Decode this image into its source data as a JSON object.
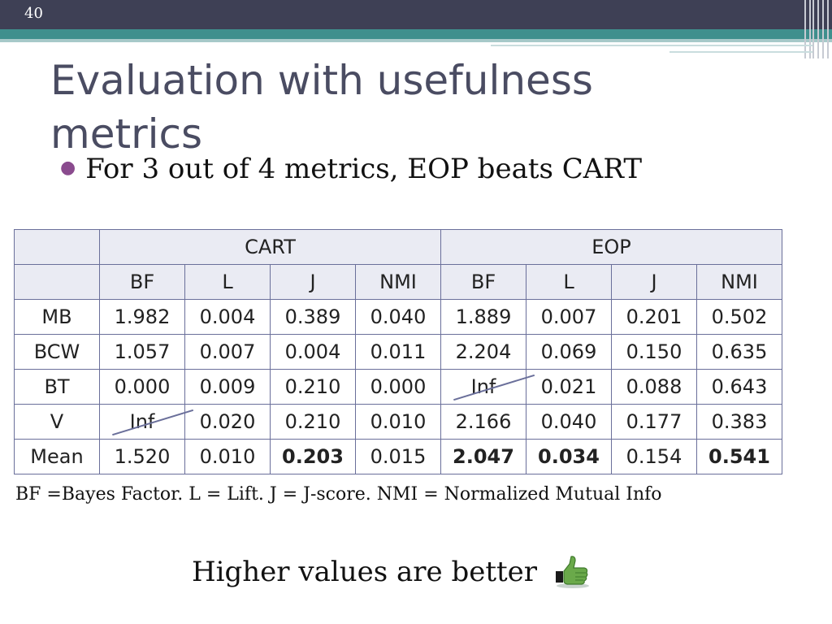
{
  "slide": {
    "number": "40"
  },
  "title": "Evaluation with usefulness metrics",
  "bullet": "For 3 out of 4 metrics, EOP beats CART",
  "table": {
    "groups": [
      "CART",
      "EOP"
    ],
    "metrics": [
      "BF",
      "L",
      "J",
      "NMI",
      "BF",
      "L",
      "J",
      "NMI"
    ],
    "rows": [
      {
        "label": "MB",
        "cells": [
          "1.982",
          "0.004",
          "0.389",
          "0.040",
          "1.889",
          "0.007",
          "0.201",
          "0.502"
        ]
      },
      {
        "label": "BCW",
        "cells": [
          "1.057",
          "0.007",
          "0.004",
          "0.011",
          "2.204",
          "0.069",
          "0.150",
          "0.635"
        ]
      },
      {
        "label": "BT",
        "cells": [
          "0.000",
          "0.009",
          "0.210",
          "0.000",
          "Inf",
          "0.021",
          "0.088",
          "0.643"
        ]
      },
      {
        "label": "V",
        "cells": [
          "Inf",
          "0.020",
          "0.210",
          "0.010",
          "2.166",
          "0.040",
          "0.177",
          "0.383"
        ]
      },
      {
        "label": "Mean",
        "cells": [
          "1.520",
          "0.010",
          "0.203",
          "0.015",
          "2.047",
          "0.034",
          "0.154",
          "0.541"
        ]
      }
    ]
  },
  "legend": "BF =Bayes Factor. L = Lift.  J = J-score. NMI = Normalized Mutual Info",
  "footer_note": "Higher values are better",
  "icons": {
    "thumbs_up": "thumbs-up-icon"
  },
  "colors": {
    "header": "#3e4055",
    "accent_teal": "#3f8f8d",
    "title": "#4a4c62",
    "bullet": "#8a4b8e",
    "table_border": "#6a6f9a",
    "table_shade": "#eaebf3"
  }
}
